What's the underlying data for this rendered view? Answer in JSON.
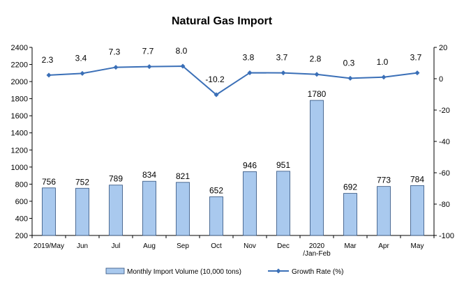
{
  "chart_data": {
    "type": "bar+line",
    "title": "Natural Gas Import",
    "categories": [
      "2019/May",
      "Jun",
      "Jul",
      "Aug",
      "Sep",
      "Oct",
      "Nov",
      "Dec",
      [
        "2020",
        "/Jan-Feb"
      ],
      "Mar",
      "Apr",
      "May"
    ],
    "series": [
      {
        "name": "Monthly Import Volume (10,000 tons)",
        "type": "bar",
        "axis": "left",
        "values": [
          756,
          752,
          789,
          834,
          821,
          652,
          946,
          951,
          1780,
          692,
          773,
          784
        ],
        "labels": [
          "756",
          "752",
          "789",
          "834",
          "821",
          "652",
          "946",
          "951",
          "1780",
          "692",
          "773",
          "784"
        ]
      },
      {
        "name": "Growth Rate (%)",
        "type": "line",
        "axis": "right",
        "values": [
          2.3,
          3.4,
          7.3,
          7.7,
          8.0,
          -10.2,
          3.8,
          3.7,
          2.8,
          0.3,
          1.0,
          3.7
        ],
        "labels": [
          "2.3",
          "3.4",
          "7.3",
          "7.7",
          "8.0",
          "-10.2",
          "3.8",
          "3.7",
          "2.8",
          "0.3",
          "1.0",
          "3.7"
        ]
      }
    ],
    "y_left": {
      "range": [
        200,
        2400
      ],
      "step": 200
    },
    "y_right": {
      "range": [
        -100,
        20
      ],
      "step": 20
    },
    "legend": "bottom",
    "colors": {
      "bar_fill": "#a9c9ee",
      "bar_stroke": "#2d4f7c",
      "line": "#3a6fb7"
    }
  }
}
